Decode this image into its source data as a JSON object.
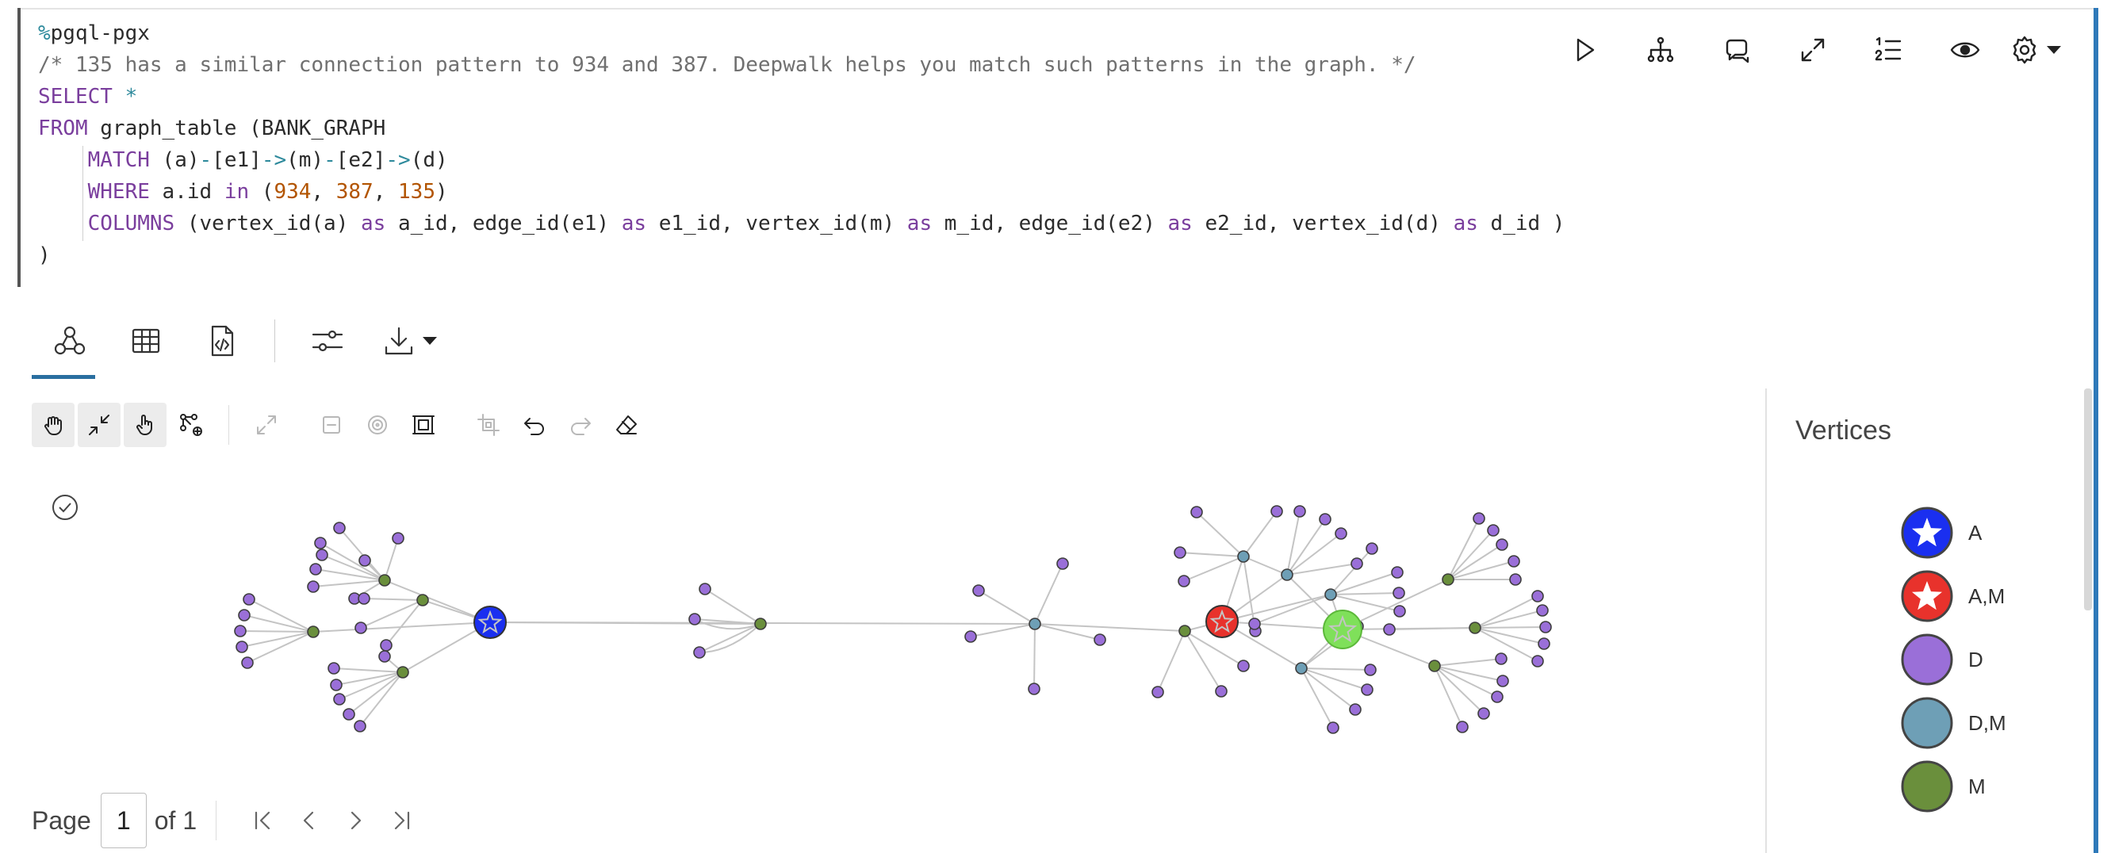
{
  "code": {
    "lines": [
      [
        {
          "c": "sym",
          "t": "%"
        },
        {
          "c": "",
          "t": "pgql-pgx"
        }
      ],
      [
        {
          "c": "cmt",
          "t": "/* 135 has a similar connection pattern to 934 and 387. Deepwalk helps you match such patterns in the graph. */"
        }
      ],
      [
        {
          "c": "kw",
          "t": "SELECT"
        },
        {
          "c": "",
          "t": " "
        },
        {
          "c": "op",
          "t": "*"
        }
      ],
      [
        {
          "c": "kw",
          "t": "FROM"
        },
        {
          "c": "",
          "t": " graph_table (BANK_GRAPH"
        }
      ],
      [
        {
          "c": "",
          "t": "    "
        },
        {
          "c": "kw",
          "t": "MATCH"
        },
        {
          "c": "",
          "t": " (a)"
        },
        {
          "c": "op",
          "t": "-"
        },
        {
          "c": "",
          "t": "[e1]"
        },
        {
          "c": "op",
          "t": "->"
        },
        {
          "c": "",
          "t": "(m)"
        },
        {
          "c": "op",
          "t": "-"
        },
        {
          "c": "",
          "t": "[e2]"
        },
        {
          "c": "op",
          "t": "->"
        },
        {
          "c": "",
          "t": "(d)"
        }
      ],
      [
        {
          "c": "",
          "t": "    "
        },
        {
          "c": "kw",
          "t": "WHERE"
        },
        {
          "c": "",
          "t": " a.id "
        },
        {
          "c": "kw",
          "t": "in"
        },
        {
          "c": "",
          "t": " ("
        },
        {
          "c": "num",
          "t": "934"
        },
        {
          "c": "",
          "t": ", "
        },
        {
          "c": "num",
          "t": "387"
        },
        {
          "c": "",
          "t": ", "
        },
        {
          "c": "num",
          "t": "135"
        },
        {
          "c": "",
          "t": ")"
        }
      ],
      [
        {
          "c": "",
          "t": "    "
        },
        {
          "c": "kw",
          "t": "COLUMNS"
        },
        {
          "c": "",
          "t": " (vertex_id(a) "
        },
        {
          "c": "kw",
          "t": "as"
        },
        {
          "c": "",
          "t": " a_id, edge_id(e1) "
        },
        {
          "c": "kw",
          "t": "as"
        },
        {
          "c": "",
          "t": " e1_id, vertex_id(m) "
        },
        {
          "c": "kw",
          "t": "as"
        },
        {
          "c": "",
          "t": " m_id, edge_id(e2) "
        },
        {
          "c": "kw",
          "t": "as"
        },
        {
          "c": "",
          "t": " e2_id, vertex_id(d) "
        },
        {
          "c": "kw",
          "t": "as"
        },
        {
          "c": "",
          "t": " d_id )"
        }
      ],
      [
        {
          "c": "",
          "t": ")"
        }
      ]
    ]
  },
  "cell_toolbar": {
    "icons": [
      "play-icon",
      "network-icon",
      "comment-icon",
      "expand-icon",
      "numbered-list-icon",
      "eye-icon",
      "gear-icon",
      "caret-down-icon"
    ]
  },
  "result_tabs": {
    "active": "graph",
    "icons": [
      "graph-icon",
      "table-icon",
      "code-file-icon",
      "sliders-icon",
      "download-icon",
      "caret-down-icon"
    ]
  },
  "graph_toolbar": {
    "icons": [
      "pan-hand-icon",
      "shrink-icon",
      "pointer-hand-icon",
      "network-add-icon",
      "expand-icon",
      "collapse-icon",
      "focus-icon",
      "fit-icon",
      "crop-icon",
      "undo-icon",
      "redo-icon",
      "eraser-icon"
    ]
  },
  "pagination": {
    "label": "Page",
    "current": "1",
    "of_label": "of 1"
  },
  "legend": {
    "title": "Vertices",
    "items": [
      {
        "label": "A",
        "color": "#1a2ff0",
        "shape": "star"
      },
      {
        "label": "A,M",
        "color": "#e8322c",
        "shape": "star"
      },
      {
        "label": "D",
        "color": "#9a6fd8",
        "shape": "circle"
      },
      {
        "label": "D,M",
        "color": "#6e9fb6",
        "shape": "circle"
      },
      {
        "label": "M",
        "color": "#6a8f3c",
        "shape": "circle"
      }
    ]
  },
  "colors": {
    "A": "#1a2ff0",
    "AM": "#e8322c",
    "highlight": "#7fe05a",
    "D": "#9a6fd8",
    "DM": "#6e9fb6",
    "M": "#6a8f3c",
    "accent": "#2a6fa0"
  }
}
